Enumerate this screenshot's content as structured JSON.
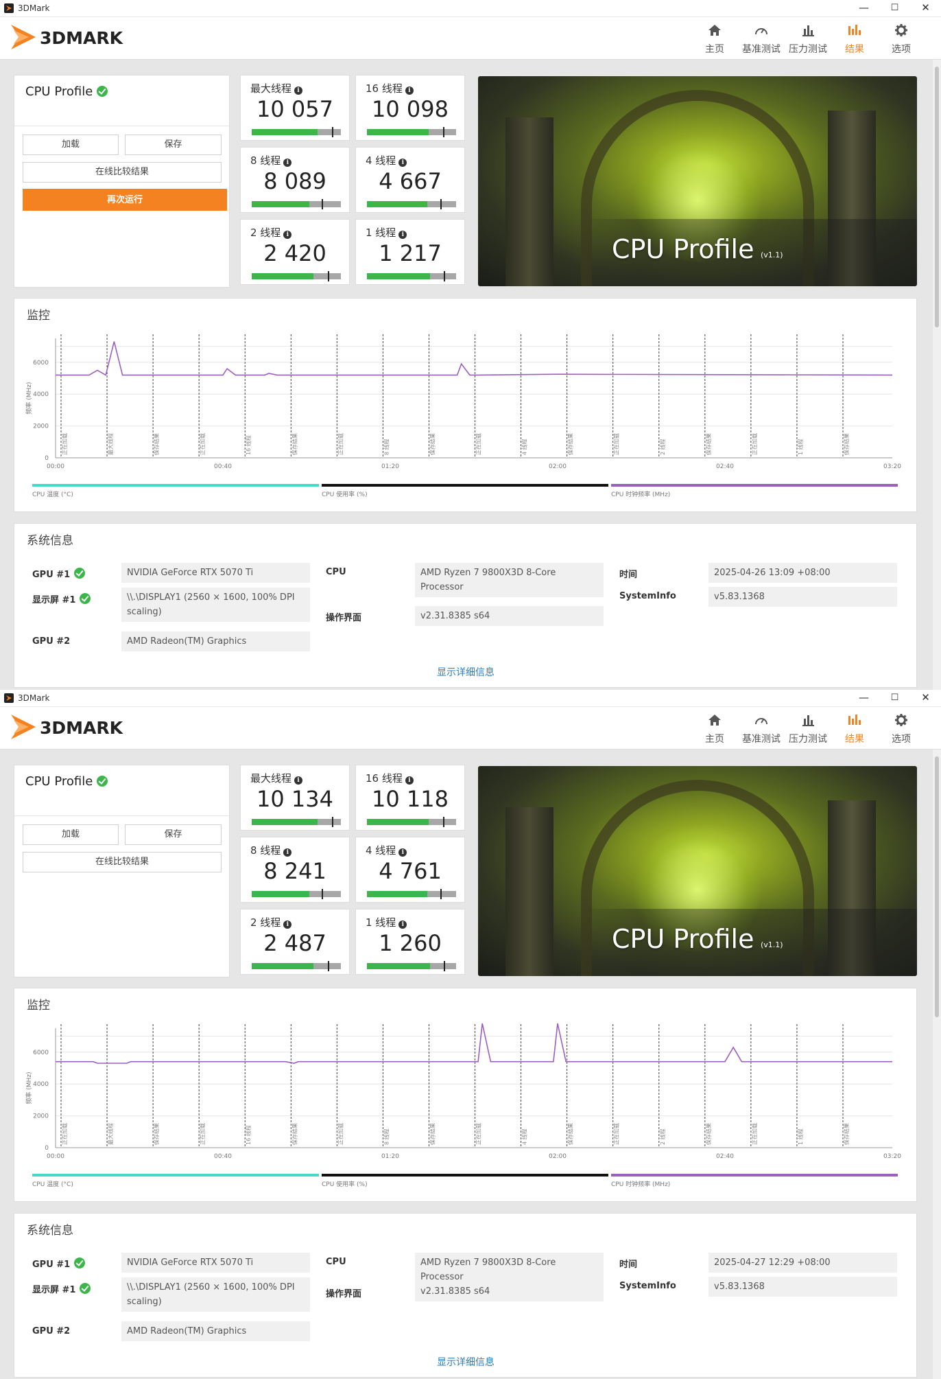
{
  "app": {
    "title": "3DMark",
    "logo_text": "3DMARK"
  },
  "window_controls": {
    "minimize": "—",
    "maximize": "☐",
    "close": "✕"
  },
  "nav": [
    {
      "label": "主页",
      "icon": "home-icon"
    },
    {
      "label": "基准测试",
      "icon": "gauge-icon"
    },
    {
      "label": "压力测试",
      "icon": "stress-chart-icon"
    },
    {
      "label": "结果",
      "icon": "results-chart-icon",
      "active": true
    },
    {
      "label": "选项",
      "icon": "gear-icon"
    }
  ],
  "accent_color": "#f58220",
  "runs": [
    {
      "profile": {
        "title": "CPU Profile",
        "load": "加载",
        "save": "保存",
        "compare": "在线比较结果",
        "rerun": "再次运行"
      },
      "scores": [
        {
          "label": "最大线程",
          "value": "10 057",
          "fraction": 0.72
        },
        {
          "label": "16 线程",
          "value": "10 098",
          "fraction": 0.68
        },
        {
          "label": "8 线程",
          "value": "8 089",
          "fraction": 0.63
        },
        {
          "label": "4 线程",
          "value": "4 667",
          "fraction": 0.66
        },
        {
          "label": "2 线程",
          "value": "2 420",
          "fraction": 0.68
        },
        {
          "label": "1 线程",
          "value": "1 217",
          "fraction": 0.69
        }
      ],
      "hero": {
        "title": "CPU Profile",
        "version": "(v1.1)"
      },
      "monitor": {
        "title": "监控",
        "y_axis_label": "频率 (MHz)",
        "y_ticks": [
          "6000",
          "4000",
          "2000",
          "0"
        ],
        "x_ticks": [
          "00:00",
          "00:40",
          "01:20",
          "02:00",
          "02:40",
          "03:20"
        ],
        "phase_labels": [
          "正在加载",
          "最大线程",
          "保存结果",
          "正在加载",
          "16 线程",
          "保存结果",
          "正在加载",
          "8 线程",
          "保存结果",
          "正在加载",
          "4 线程",
          "保存结果",
          "正在加载",
          "2 线程",
          "保存结果",
          "正在加载",
          "1 线程",
          "保存结果"
        ],
        "legend": [
          {
            "label": "CPU 温度 (°C)",
            "color": "#44dcc8"
          },
          {
            "label": "CPU 使用率 (%)",
            "color": "#111111"
          },
          {
            "label": "CPU 时钟频率 (MHz)",
            "color": "#9b5fc0"
          }
        ],
        "chart_data": {
          "type": "line",
          "ylabel": "频率 (MHz)",
          "ylim": [
            0,
            7500
          ],
          "x_unit": "seconds",
          "xlim": [
            0,
            200
          ],
          "series": [
            {
              "name": "CPU 时钟频率 (MHz)",
              "color": "#9b5fc0",
              "x": [
                0,
                8,
                10,
                12,
                14,
                16,
                18,
                40,
                41,
                43,
                45,
                50,
                51,
                53,
                96,
                97,
                99,
                101,
                120,
                200
              ],
              "y": [
                5200,
                5200,
                5500,
                5200,
                7300,
                5200,
                5200,
                5200,
                5600,
                5200,
                5200,
                5200,
                5300,
                5200,
                5200,
                5900,
                5200,
                5200,
                5250,
                5200
              ]
            }
          ]
        }
      },
      "sysinfo": {
        "title": "系统信息",
        "gpu1": {
          "label": "GPU #1",
          "value": "NVIDIA GeForce RTX 5070 Ti"
        },
        "display1": {
          "label": "显示屏 #1",
          "value": "\\\\.\\DISPLAY1 (2560 × 1600, 100% DPI scaling)"
        },
        "gpu2": {
          "label": "GPU #2",
          "value": "AMD Radeon(TM) Graphics"
        },
        "cpu": {
          "label": "CPU",
          "value": "AMD Ryzen 7 9800X3D 8-Core Processor"
        },
        "os": {
          "label": "操作界面",
          "value": "v2.31.8385 s64"
        },
        "time": {
          "label": "时间",
          "value": "2025-04-26 13:09 +08:00"
        },
        "sysinfo": {
          "label": "SystemInfo",
          "value": "v5.83.1368"
        },
        "more": "显示详细信息"
      }
    },
    {
      "profile": {
        "title": "CPU Profile",
        "load": "加载",
        "save": "保存",
        "compare": "在线比较结果"
      },
      "scores": [
        {
          "label": "最大线程",
          "value": "10 134",
          "fraction": 0.72
        },
        {
          "label": "16 线程",
          "value": "10 118",
          "fraction": 0.68
        },
        {
          "label": "8 线程",
          "value": "8 241",
          "fraction": 0.63
        },
        {
          "label": "4 线程",
          "value": "4 761",
          "fraction": 0.66
        },
        {
          "label": "2 线程",
          "value": "2 487",
          "fraction": 0.68
        },
        {
          "label": "1 线程",
          "value": "1 260",
          "fraction": 0.69
        }
      ],
      "hero": {
        "title": "CPU Profile",
        "version": "(v1.1)"
      },
      "monitor": {
        "title": "监控",
        "y_axis_label": "频率 (MHz)",
        "y_ticks": [
          "6000",
          "4000",
          "2000",
          "0"
        ],
        "x_ticks": [
          "00:00",
          "00:40",
          "01:20",
          "02:00",
          "02:40",
          "03:20"
        ],
        "phase_labels": [
          "正在加载",
          "最大线程",
          "保存结果",
          "正在加载",
          "16 线程",
          "保存结果",
          "正在加载",
          "8 线程",
          "保存结果",
          "正在加载",
          "4 线程",
          "保存结果",
          "正在加载",
          "2 线程",
          "保存结果",
          "正在加载",
          "1 线程",
          "保存结果"
        ],
        "legend": [
          {
            "label": "CPU 温度 (°C)",
            "color": "#44dcc8"
          },
          {
            "label": "CPU 使用率 (%)",
            "color": "#111111"
          },
          {
            "label": "CPU 时钟频率 (MHz)",
            "color": "#9b5fc0"
          }
        ],
        "chart_data": {
          "type": "line",
          "ylabel": "频率 (MHz)",
          "ylim": [
            0,
            7500
          ],
          "x_unit": "seconds",
          "xlim": [
            0,
            200
          ],
          "series": [
            {
              "name": "CPU 时钟频率 (MHz)",
              "color": "#9b5fc0",
              "x": [
                0,
                9,
                10,
                17,
                18,
                20,
                55,
                57,
                58,
                100,
                101,
                102,
                104,
                118,
                119,
                120,
                122,
                160,
                162,
                164,
                200
              ],
              "y": [
                5400,
                5400,
                5300,
                5300,
                5400,
                5400,
                5400,
                5300,
                5400,
                5400,
                5400,
                7800,
                5400,
                5400,
                5400,
                7800,
                5400,
                5400,
                6300,
                5400,
                5400
              ]
            }
          ]
        }
      },
      "sysinfo": {
        "title": "系统信息",
        "gpu1": {
          "label": "GPU #1",
          "value": "NVIDIA GeForce RTX 5070 Ti"
        },
        "display1": {
          "label": "显示屏 #1",
          "value": "\\\\.\\DISPLAY1 (2560 × 1600, 100% DPI scaling)"
        },
        "gpu2": {
          "label": "GPU #2",
          "value": "AMD Radeon(TM) Graphics"
        },
        "cpu": {
          "label": "CPU",
          "value": "AMD Ryzen 7 9800X3D 8-Core Processor"
        },
        "os": {
          "label": "操作界面",
          "value": "v2.31.8385 s64"
        },
        "time": {
          "label": "时间",
          "value": "2025-04-27 12:29 +08:00"
        },
        "sysinfo": {
          "label": "SystemInfo",
          "value": "v5.83.1368"
        },
        "more": "显示详细信息"
      }
    }
  ]
}
